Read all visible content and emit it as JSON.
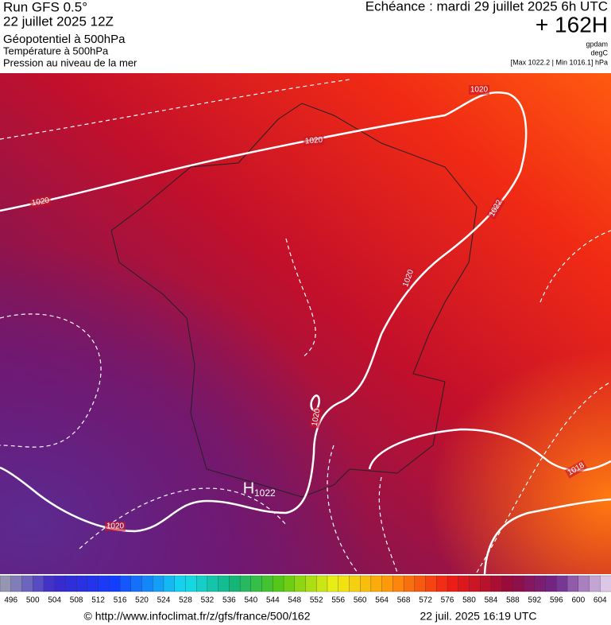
{
  "header": {
    "run": "Run GFS 0.5°",
    "run_date": "22 juillet 2025 12Z",
    "field1": "Géopotentiel à 500hPa",
    "field2": "Température à 500hPa",
    "field3": "Pression au niveau de la mer",
    "valid": "Echéance : mardi 29 juillet 2025 6h UTC",
    "lead": "+ 162H",
    "unit1": "gpdam",
    "unit2": "degC",
    "range": "[Max 1022.2 | Min 1016.1] hPa"
  },
  "map": {
    "isobar_labels": [
      1020,
      1020,
      1020,
      1022,
      1020,
      1020,
      1020,
      1018
    ],
    "high_label": "H",
    "high_value": 1022
  },
  "colorbar": {
    "labels": [
      496,
      500,
      504,
      508,
      512,
      516,
      520,
      524,
      528,
      532,
      536,
      540,
      544,
      548,
      552,
      556,
      560,
      564,
      568,
      572,
      576,
      580,
      584,
      588,
      592,
      596,
      600,
      604
    ]
  },
  "footer": {
    "url": "© http://www.infoclimat.fr/z/gfs/france/500/162",
    "generated": "22 juil. 2025 16:19 UTC"
  }
}
